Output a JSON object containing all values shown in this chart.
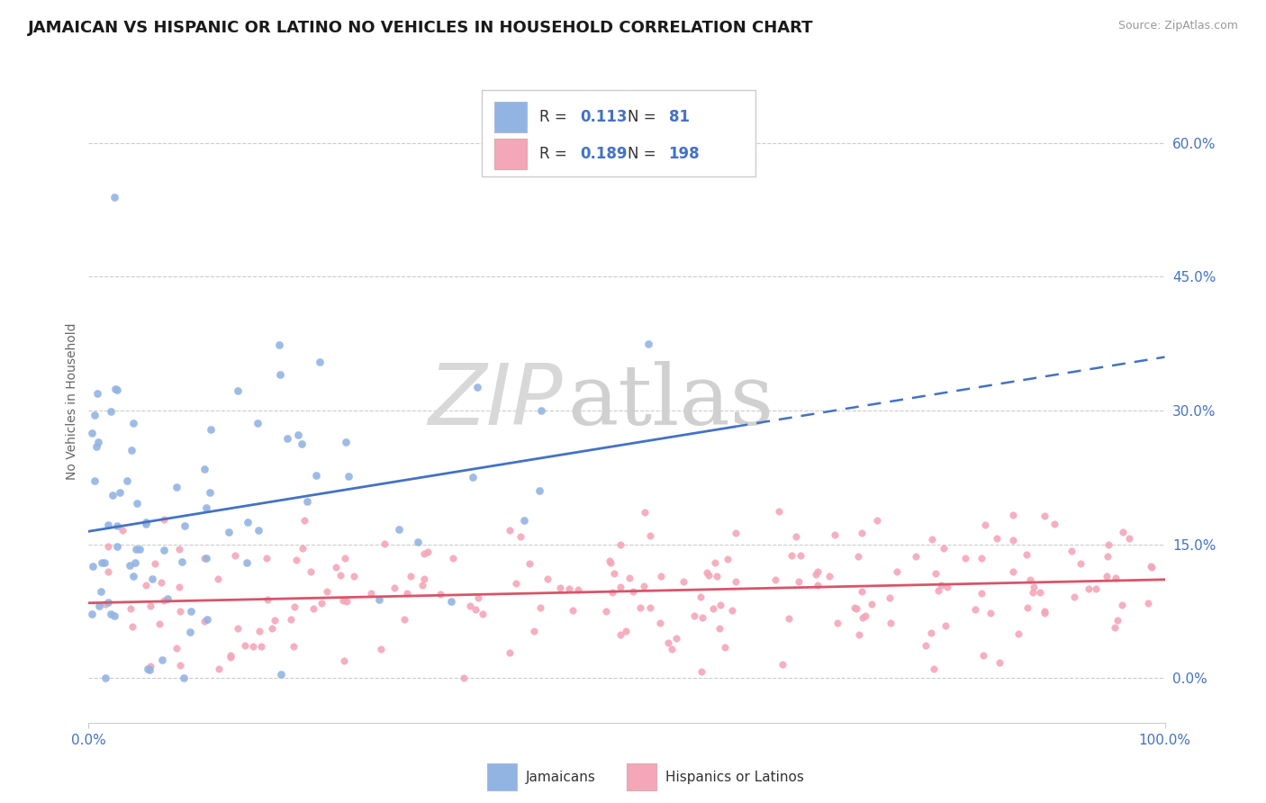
{
  "title": "JAMAICAN VS HISPANIC OR LATINO NO VEHICLES IN HOUSEHOLD CORRELATION CHART",
  "source": "Source: ZipAtlas.com",
  "ylabel": "No Vehicles in Household",
  "xlim": [
    0.0,
    100.0
  ],
  "ylim": [
    -5.0,
    67.0
  ],
  "yticks": [
    0,
    15,
    30,
    45,
    60
  ],
  "ytick_labels": [
    "0.0%",
    "15.0%",
    "30.0%",
    "45.0%",
    "60.0%"
  ],
  "xtick_labels": [
    "0.0%",
    "100.0%"
  ],
  "legend_blue_R": "0.113",
  "legend_blue_N": "81",
  "legend_pink_R": "0.189",
  "legend_pink_N": "198",
  "legend_label_blue": "Jamaicans",
  "legend_label_pink": "Hispanics or Latinos",
  "color_blue": "#92b4e3",
  "color_pink": "#f4a7b9",
  "line_color_blue": "#4472c4",
  "line_color_pink": "#d9546a",
  "background_color": "#ffffff",
  "watermark_zip": "ZIP",
  "watermark_atlas": "atlas",
  "title_fontsize": 13,
  "axis_label_fontsize": 10,
  "tick_fontsize": 11,
  "legend_text_color": "#4472c4",
  "tick_color": "#4472c4"
}
